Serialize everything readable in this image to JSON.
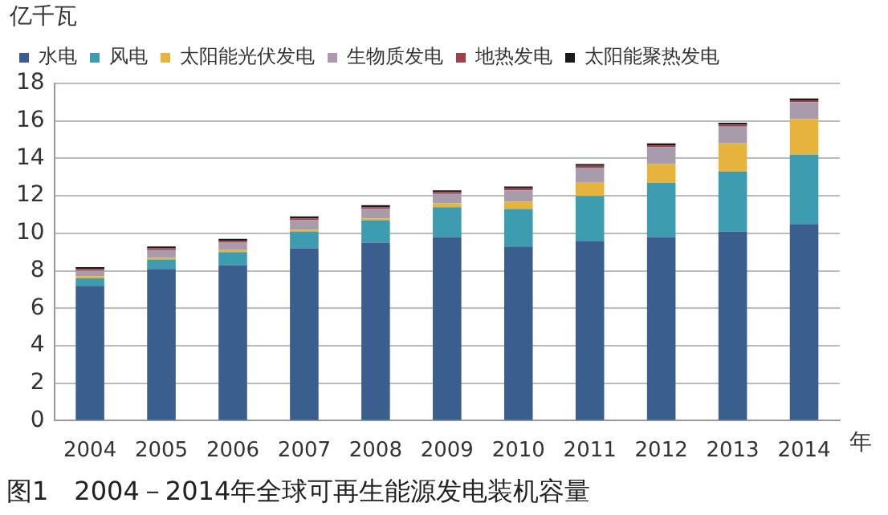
{
  "chart_data": {
    "type": "bar",
    "stacked": true,
    "title": "图1　2004－2014年全球可再生能源发电装机容量",
    "ylabel": "亿千瓦",
    "xlabel": "年",
    "categories": [
      "2004",
      "2005",
      "2006",
      "2007",
      "2008",
      "2009",
      "2010",
      "2011",
      "2012",
      "2013",
      "2014"
    ],
    "series": [
      {
        "name": "水电",
        "color": "#3a5f8f",
        "values": [
          7.2,
          8.1,
          8.3,
          9.2,
          9.5,
          9.8,
          9.3,
          9.6,
          9.8,
          10.1,
          10.5
        ]
      },
      {
        "name": "风电",
        "color": "#3d9cb0",
        "values": [
          0.4,
          0.5,
          0.7,
          0.9,
          1.2,
          1.6,
          2.0,
          2.4,
          2.9,
          3.2,
          3.7
        ]
      },
      {
        "name": "太阳能光伏发电",
        "color": "#e6b43c",
        "values": [
          0.1,
          0.1,
          0.1,
          0.1,
          0.1,
          0.2,
          0.4,
          0.7,
          1.0,
          1.5,
          1.9
        ]
      },
      {
        "name": "生物质发电",
        "color": "#a89bab",
        "values": [
          0.3,
          0.4,
          0.4,
          0.5,
          0.5,
          0.5,
          0.6,
          0.8,
          0.9,
          0.9,
          0.9
        ]
      },
      {
        "name": "地热发电",
        "color": "#a0404c",
        "values": [
          0.1,
          0.1,
          0.1,
          0.1,
          0.1,
          0.1,
          0.1,
          0.1,
          0.1,
          0.1,
          0.1
        ]
      },
      {
        "name": "太阳能聚热发电",
        "color": "#1a1a1a",
        "values": [
          0.1,
          0.1,
          0.1,
          0.1,
          0.1,
          0.1,
          0.1,
          0.1,
          0.1,
          0.1,
          0.1
        ]
      }
    ],
    "ylim": [
      0,
      18
    ],
    "yticks": [
      0,
      2,
      4,
      6,
      8,
      10,
      12,
      14,
      16,
      18
    ],
    "grid": "y",
    "legend": "top left"
  }
}
